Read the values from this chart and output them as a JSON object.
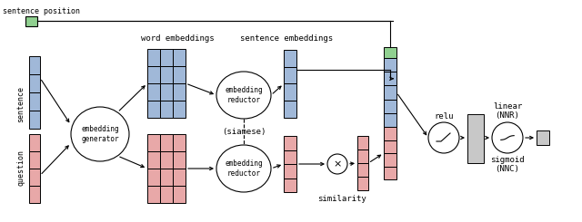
{
  "blue_color": "#a0b8d8",
  "red_color": "#e8a8a8",
  "green_color": "#90d090",
  "gray_color": "#c8c8c8",
  "white": "#ffffff",
  "black": "#000000",
  "bg": "#ffffff",
  "label_sentence": "sentence",
  "label_question": "question",
  "label_sent_pos": "sentence position",
  "label_word_emb": "word embeddings",
  "label_sent_emb": "sentence embeddings",
  "label_emb_gen": "embedding\ngenerator",
  "label_emb_red": "embedding\nreductor",
  "label_siamese": "(siamese)",
  "label_similarity": "similarity",
  "label_relu": "relu",
  "label_linear": "linear\n(NNR)",
  "label_sigmoid": "sigmoid\n(NNC)"
}
